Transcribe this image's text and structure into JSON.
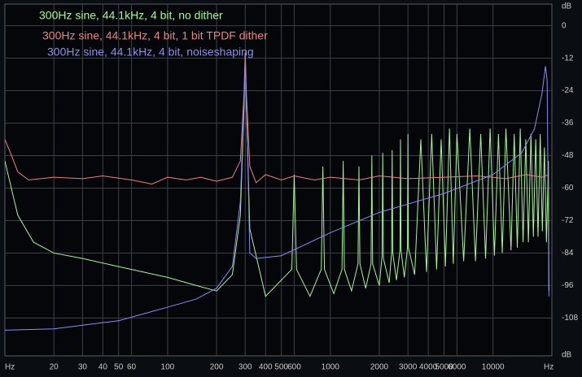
{
  "chart_data": {
    "type": "line",
    "x_label": "Hz",
    "y_label": "dB",
    "xscale": "log",
    "grid": true,
    "xlim": [
      10,
      23000
    ],
    "ylim": [
      -122,
      8
    ],
    "xticks": [
      20,
      30,
      40,
      50,
      60,
      100,
      200,
      300,
      400,
      500,
      600,
      1000,
      2000,
      3000,
      4000,
      5000,
      6000,
      10000
    ],
    "yticks": [
      0,
      -12,
      -24,
      -36,
      -48,
      -60,
      -72,
      -84,
      -96,
      -108
    ],
    "series": [
      {
        "name": "300Hz sine, 44.1kHz, 4 bit, no dither",
        "color": "#a6f59c",
        "x": [
          10,
          12,
          15,
          20,
          30,
          50,
          100,
          150,
          200,
          250,
          280,
          295,
          300,
          305,
          320,
          400,
          580,
          600,
          620,
          750,
          880,
          900,
          920,
          1050,
          1180,
          1200,
          1220,
          1350,
          1480,
          1500,
          1520,
          1650,
          1780,
          1800,
          1820,
          2000,
          2080,
          2100,
          2120,
          2300,
          2380,
          2400,
          2420,
          2550,
          2680,
          2700,
          2720,
          2850,
          2980,
          3000,
          3020,
          3300,
          3600,
          3900,
          4200,
          4500,
          4800,
          5100,
          5400,
          5700,
          6000,
          6600,
          7200,
          7800,
          8400,
          9000,
          9600,
          10200,
          10800,
          11400,
          12000,
          12900,
          13500,
          14100,
          14700,
          15300,
          15900,
          16500,
          17100,
          17700,
          18300,
          18900,
          19500,
          20100,
          20700,
          21300,
          21900,
          22050
        ],
        "values": [
          -50,
          -70,
          -80,
          -84,
          -86,
          -89,
          -93,
          -96,
          -98,
          -92,
          -70,
          -30,
          -10,
          -30,
          -75,
          -100,
          -90,
          -55,
          -90,
          -100,
          -90,
          -52,
          -90,
          -99,
          -90,
          -50,
          -90,
          -98,
          -88,
          -52,
          -88,
          -97,
          -88,
          -48,
          -88,
          -96,
          -85,
          -47,
          -86,
          -95,
          -84,
          -46,
          -84,
          -94,
          -83,
          -42,
          -83,
          -93,
          -82,
          -40,
          -82,
          -92,
          -42,
          -91,
          -40,
          -90,
          -42,
          -89,
          -38,
          -88,
          -40,
          -87,
          -38,
          -87,
          -40,
          -86,
          -38,
          -85,
          -40,
          -84,
          -38,
          -83,
          -40,
          -82,
          -38,
          -80,
          -42,
          -80,
          -40,
          -78,
          -42,
          -78,
          -40,
          -76,
          -45,
          -80,
          -50,
          -98
        ]
      },
      {
        "name": "300Hz sine, 44.1kHz, 4 bit, 1 bit TPDF dither",
        "color": "#f08080",
        "x": [
          10,
          11,
          12,
          14,
          20,
          30,
          40,
          60,
          80,
          100,
          130,
          160,
          200,
          250,
          280,
          295,
          300,
          305,
          320,
          350,
          400,
          500,
          600,
          800,
          1000,
          1500,
          2000,
          3000,
          5000,
          8000,
          12000,
          16000,
          20000,
          22050
        ],
        "values": [
          -42,
          -48,
          -54,
          -57,
          -56,
          -56.5,
          -55.5,
          -57,
          -58.5,
          -56,
          -57,
          -56,
          -57.5,
          -56,
          -50,
          -25,
          -10,
          -25,
          -52,
          -58,
          -55,
          -57,
          -55.5,
          -57,
          -56,
          -57,
          -55.5,
          -56.5,
          -56,
          -55.5,
          -56.5,
          -55,
          -56,
          -55
        ]
      },
      {
        "name": "300Hz sine, 44.1kHz, 4 bit, noiseshaping",
        "color": "#8c8cf2",
        "x": [
          10,
          20,
          50,
          100,
          150,
          200,
          250,
          280,
          290,
          300,
          310,
          320,
          350,
          500,
          1000,
          2000,
          5000,
          10000,
          15000,
          18000,
          20000,
          21000,
          21500,
          22000,
          22050
        ],
        "values": [
          -112.5,
          -112,
          -109,
          -104,
          -101,
          -97,
          -89,
          -65,
          -40,
          -13,
          -45,
          -84,
          -86,
          -85,
          -76.5,
          -69,
          -62,
          -55,
          -47,
          -38,
          -25,
          -15,
          -20,
          -89,
          -100
        ]
      }
    ]
  }
}
